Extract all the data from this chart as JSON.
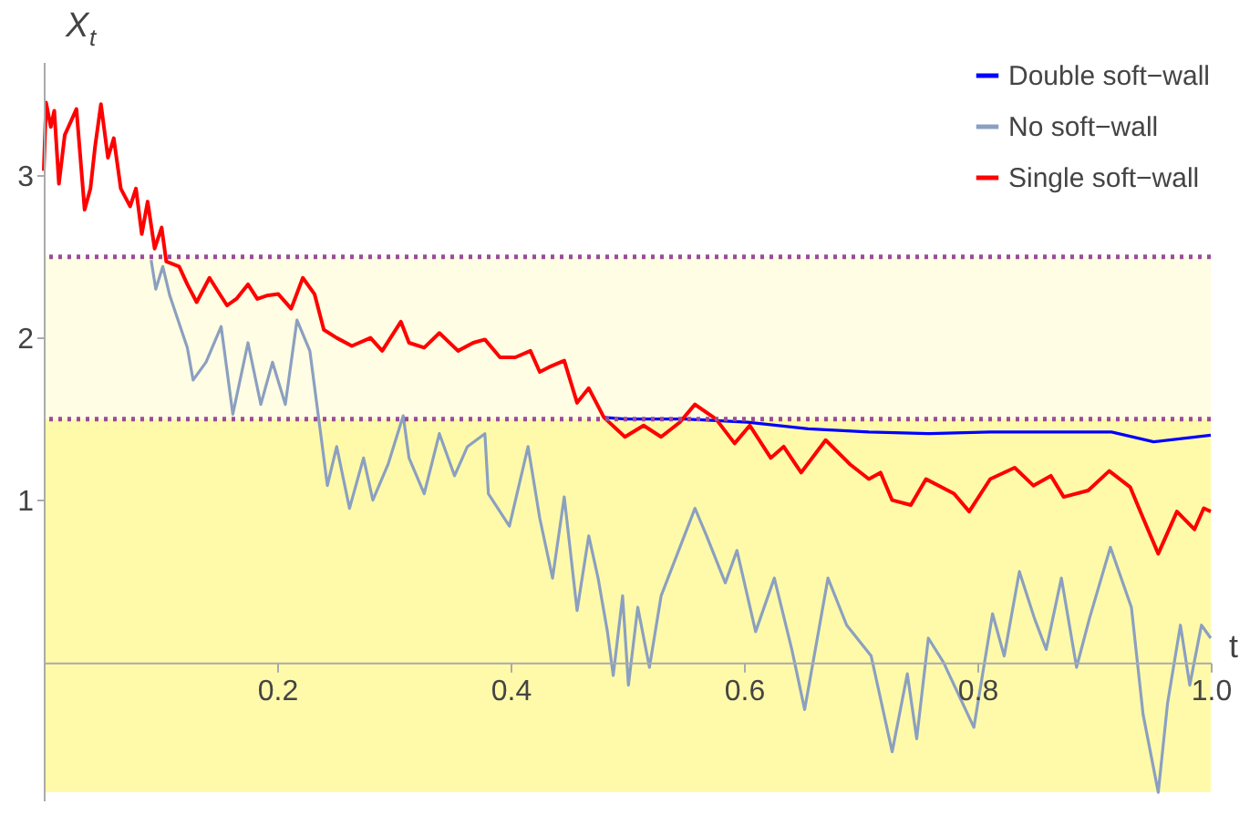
{
  "chart_data": {
    "type": "line",
    "xlabel": "t",
    "ylabel": "X$_{t}$",
    "xlim": [
      0,
      1.0
    ],
    "ylim": [
      -0.85,
      3.7
    ],
    "xticks": [
      0.2,
      0.4,
      0.6,
      0.8,
      {
        "value": 1.0,
        "label": "1.0"
      }
    ],
    "yticks": [
      1,
      2,
      3
    ],
    "grid": false,
    "legend": "top right",
    "marker": "none",
    "line_style": "solid",
    "bands": [
      {
        "axis": "y",
        "from": 1.5,
        "to": 2.5,
        "color": "#fffde3"
      },
      {
        "axis": "y",
        "from": -0.8,
        "to": 1.5,
        "color": "#fffaaa"
      }
    ],
    "ref_lines": [
      {
        "axis": "y",
        "value": 1.5,
        "color": "#9b4b9b",
        "line_style": "dotted"
      },
      {
        "axis": "y",
        "value": 2.5,
        "color": "#9b4b9b",
        "line_style": "dotted"
      }
    ],
    "series": [
      {
        "name": "Double soft−wall",
        "color": "#0000ff",
        "x": [
          0.48,
          0.498,
          0.55,
          0.603,
          0.655,
          0.707,
          0.759,
          0.811,
          0.863,
          0.915,
          0.951,
          1.0
        ],
        "values": [
          1.51,
          1.5,
          1.5,
          1.48,
          1.44,
          1.42,
          1.41,
          1.42,
          1.42,
          1.42,
          1.36,
          1.4
        ]
      },
      {
        "name": "No soft−wall",
        "color": "#8ba0c0",
        "x": [
          0.092,
          0.096,
          0.102,
          0.108,
          0.123,
          0.128,
          0.139,
          0.152,
          0.162,
          0.175,
          0.186,
          0.196,
          0.207,
          0.217,
          0.228,
          0.238,
          0.243,
          0.251,
          0.262,
          0.274,
          0.282,
          0.295,
          0.308,
          0.313,
          0.326,
          0.339,
          0.352,
          0.363,
          0.378,
          0.381,
          0.399,
          0.415,
          0.425,
          0.436,
          0.446,
          0.457,
          0.467,
          0.475,
          0.483,
          0.488,
          0.496,
          0.501,
          0.509,
          0.519,
          0.529,
          0.558,
          0.568,
          0.584,
          0.594,
          0.61,
          0.626,
          0.641,
          0.652,
          0.672,
          0.688,
          0.709,
          0.727,
          0.74,
          0.748,
          0.758,
          0.771,
          0.797,
          0.813,
          0.823,
          0.836,
          0.849,
          0.859,
          0.872,
          0.885,
          0.896,
          0.914,
          0.932,
          0.942,
          0.955,
          0.963,
          0.974,
          0.982,
          0.992,
          1.0
        ],
        "values": [
          2.48,
          2.3,
          2.44,
          2.26,
          1.94,
          1.74,
          1.85,
          2.07,
          1.53,
          1.97,
          1.59,
          1.85,
          1.59,
          2.11,
          1.92,
          1.37,
          1.09,
          1.33,
          0.95,
          1.26,
          1.0,
          1.22,
          1.52,
          1.26,
          1.04,
          1.41,
          1.15,
          1.33,
          1.41,
          1.04,
          0.84,
          1.33,
          0.89,
          0.52,
          1.02,
          0.32,
          0.78,
          0.52,
          0.19,
          -0.08,
          0.41,
          -0.14,
          0.34,
          -0.03,
          0.41,
          0.95,
          0.78,
          0.49,
          0.69,
          0.19,
          0.52,
          0.08,
          -0.29,
          0.52,
          0.23,
          0.04,
          -0.55,
          -0.07,
          -0.47,
          0.15,
          0.0,
          -0.4,
          0.3,
          0.04,
          0.56,
          0.27,
          0.08,
          0.52,
          -0.03,
          0.27,
          0.71,
          0.34,
          -0.32,
          -0.8,
          -0.25,
          0.23,
          -0.14,
          0.23,
          0.15
        ]
      },
      {
        "name": "Single soft−wall",
        "color": "#ff0000",
        "x": [
          0.0,
          0.002,
          0.006,
          0.009,
          0.013,
          0.018,
          0.028,
          0.035,
          0.04,
          0.044,
          0.049,
          0.055,
          0.06,
          0.066,
          0.074,
          0.079,
          0.084,
          0.089,
          0.095,
          0.101,
          0.105,
          0.116,
          0.123,
          0.131,
          0.142,
          0.149,
          0.157,
          0.165,
          0.175,
          0.183,
          0.191,
          0.201,
          0.212,
          0.222,
          0.232,
          0.24,
          0.251,
          0.264,
          0.28,
          0.29,
          0.306,
          0.313,
          0.326,
          0.339,
          0.355,
          0.368,
          0.378,
          0.391,
          0.404,
          0.417,
          0.425,
          0.433,
          0.446,
          0.457,
          0.467,
          0.48,
          0.498,
          0.514,
          0.529,
          0.545,
          0.558,
          0.576,
          0.592,
          0.605,
          0.623,
          0.634,
          0.649,
          0.67,
          0.691,
          0.707,
          0.717,
          0.727,
          0.743,
          0.756,
          0.78,
          0.793,
          0.811,
          0.832,
          0.848,
          0.863,
          0.874,
          0.895,
          0.913,
          0.931,
          0.942,
          0.955,
          0.971,
          0.986,
          0.994,
          1.0
        ],
        "values": [
          3.03,
          3.45,
          3.3,
          3.4,
          2.95,
          3.25,
          3.41,
          2.79,
          2.92,
          3.18,
          3.44,
          3.11,
          3.23,
          2.92,
          2.81,
          2.92,
          2.64,
          2.84,
          2.55,
          2.68,
          2.47,
          2.44,
          2.33,
          2.22,
          2.37,
          2.29,
          2.2,
          2.24,
          2.33,
          2.24,
          2.26,
          2.27,
          2.18,
          2.37,
          2.27,
          2.05,
          2.0,
          1.95,
          2.0,
          1.92,
          2.1,
          1.97,
          1.94,
          2.03,
          1.92,
          1.97,
          1.99,
          1.88,
          1.88,
          1.92,
          1.79,
          1.82,
          1.86,
          1.6,
          1.69,
          1.51,
          1.39,
          1.46,
          1.39,
          1.48,
          1.59,
          1.5,
          1.35,
          1.46,
          1.26,
          1.33,
          1.17,
          1.37,
          1.22,
          1.13,
          1.17,
          1.0,
          0.97,
          1.13,
          1.04,
          0.93,
          1.13,
          1.2,
          1.09,
          1.15,
          1.02,
          1.06,
          1.18,
          1.08,
          0.89,
          0.67,
          0.93,
          0.82,
          0.95,
          0.93
        ]
      }
    ]
  }
}
